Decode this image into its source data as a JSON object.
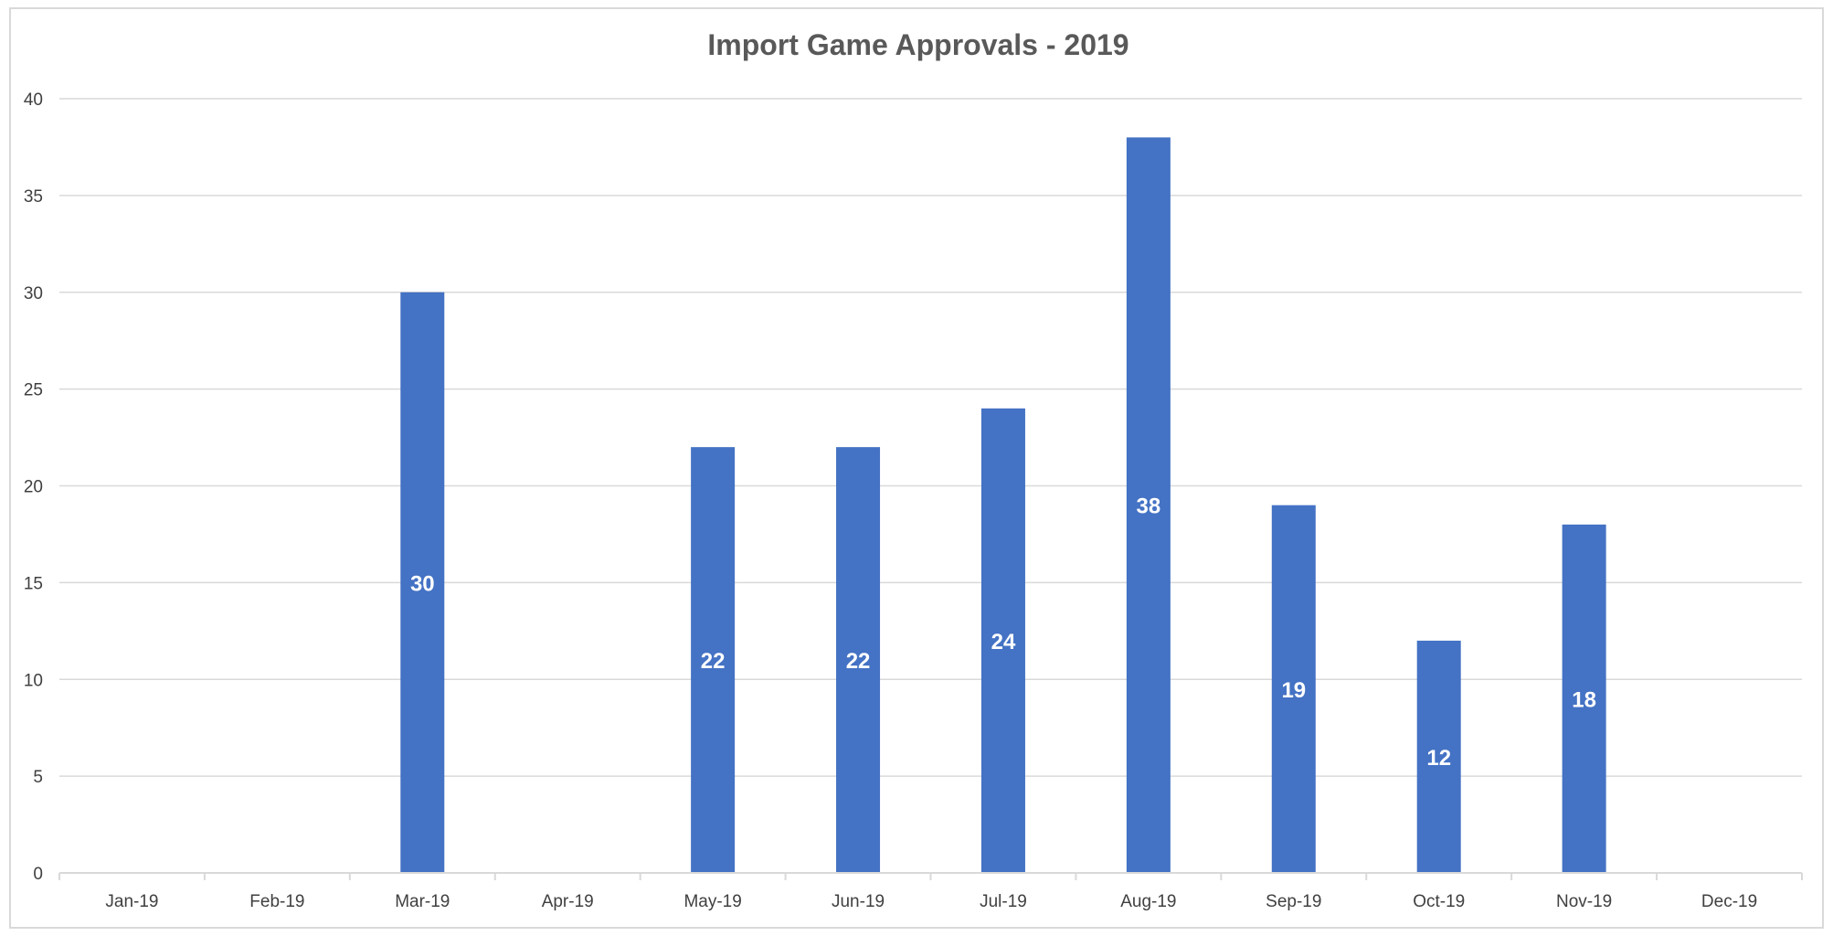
{
  "chart_data": {
    "type": "bar",
    "title": "Import Game Approvals - 2019",
    "xlabel": "",
    "ylabel": "",
    "categories": [
      "Jan-19",
      "Feb-19",
      "Mar-19",
      "Apr-19",
      "May-19",
      "Jun-19",
      "Jul-19",
      "Aug-19",
      "Sep-19",
      "Oct-19",
      "Nov-19",
      "Dec-19"
    ],
    "values": [
      null,
      null,
      30,
      null,
      22,
      22,
      24,
      38,
      19,
      12,
      18,
      null
    ],
    "ylim": [
      0,
      40
    ],
    "yticks": [
      0,
      5,
      10,
      15,
      20,
      25,
      30,
      35,
      40
    ],
    "grid": true,
    "legend": "none",
    "data_labels": true,
    "colors": {
      "bar": "#4472c4",
      "grid": "#d9d9d9",
      "axis_text": "#404040",
      "title": "#595959",
      "data_label": "#ffffff"
    }
  }
}
